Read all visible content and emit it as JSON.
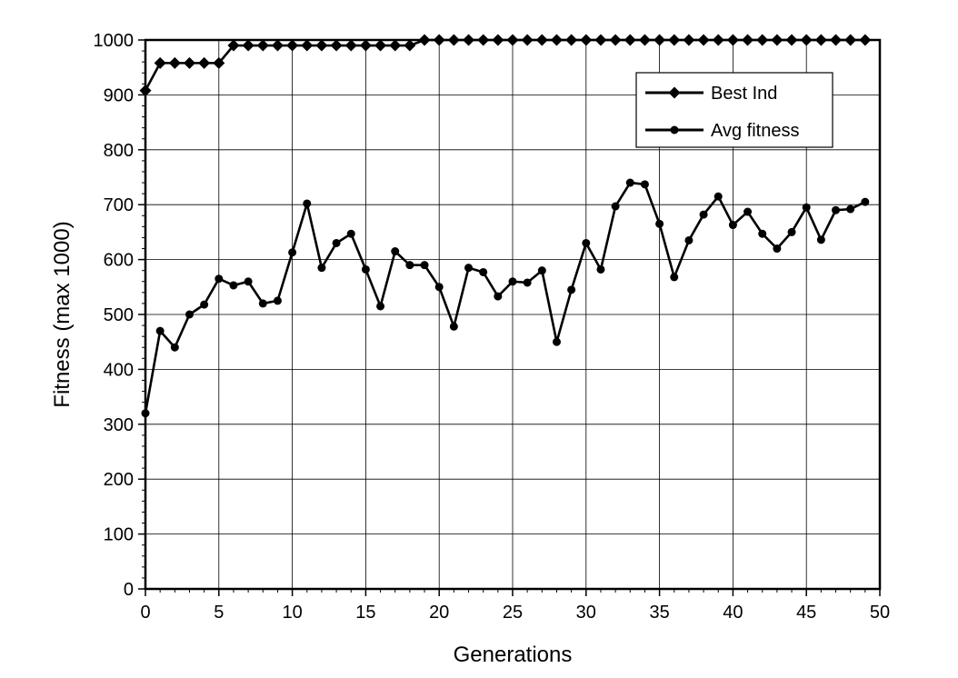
{
  "chart_data": {
    "type": "line",
    "xlabel": "Generations",
    "ylabel": "Fitness (max 1000)",
    "xlim": [
      0,
      50
    ],
    "ylim": [
      0,
      1000
    ],
    "x_ticks": [
      0,
      5,
      10,
      15,
      20,
      25,
      30,
      35,
      40,
      45,
      50
    ],
    "y_ticks": [
      0,
      100,
      200,
      300,
      400,
      500,
      600,
      700,
      800,
      900,
      1000
    ],
    "grid": true,
    "legend_position": "top-right",
    "x": [
      0,
      1,
      2,
      3,
      4,
      5,
      6,
      7,
      8,
      9,
      10,
      11,
      12,
      13,
      14,
      15,
      16,
      17,
      18,
      19,
      20,
      21,
      22,
      23,
      24,
      25,
      26,
      27,
      28,
      29,
      30,
      31,
      32,
      33,
      34,
      35,
      36,
      37,
      38,
      39,
      40,
      41,
      42,
      43,
      44,
      45,
      46,
      47,
      48,
      49
    ],
    "series": [
      {
        "name": "Best Ind",
        "marker": "diamond",
        "values": [
          908,
          958,
          958,
          958,
          958,
          958,
          990,
          990,
          990,
          990,
          990,
          990,
          990,
          990,
          990,
          990,
          990,
          990,
          990,
          1000,
          1000,
          1000,
          1000,
          1000,
          1000,
          1000,
          1000,
          1000,
          1000,
          1000,
          1000,
          1000,
          1000,
          1000,
          1000,
          1000,
          1000,
          1000,
          1000,
          1000,
          1000,
          1000,
          1000,
          1000,
          1000,
          1000,
          1000,
          1000,
          1000,
          1000
        ]
      },
      {
        "name": "Avg fitness",
        "marker": "circle",
        "values": [
          320,
          470,
          440,
          500,
          518,
          565,
          553,
          560,
          520,
          525,
          613,
          702,
          585,
          630,
          647,
          582,
          515,
          615,
          590,
          590,
          550,
          478,
          585,
          577,
          533,
          560,
          558,
          580,
          450,
          545,
          630,
          582,
          697,
          740,
          737,
          665,
          568,
          635,
          682,
          715,
          663,
          687,
          647,
          620,
          650,
          695,
          636,
          690,
          692,
          705
        ]
      }
    ]
  }
}
